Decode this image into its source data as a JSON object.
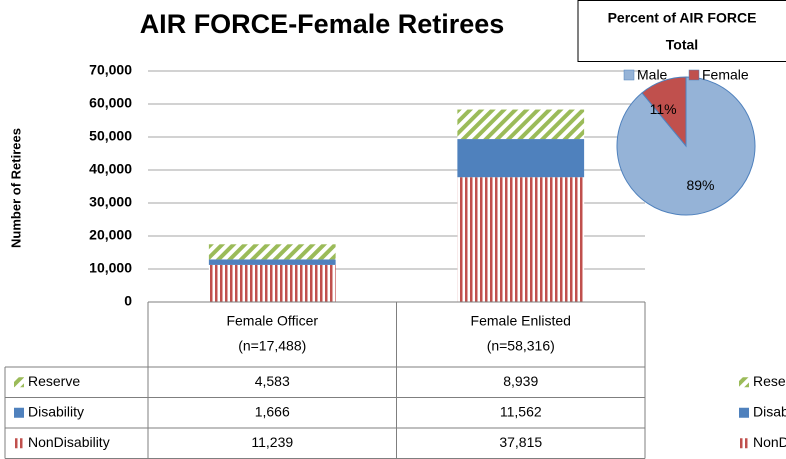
{
  "chart_data": [
    {
      "type": "bar",
      "stacked": true,
      "title": "AIR FORCE-Female Retirees",
      "y_label": "Number of Retirees",
      "categories": [
        [
          "Female Officer",
          "(n=17,488)"
        ],
        [
          "Female Enlisted",
          "(n=58,316)"
        ]
      ],
      "series": [
        {
          "name": "NonDisability",
          "color": "#c0504d",
          "pattern": "vertical-stripes",
          "values": [
            11239,
            37815
          ],
          "value_labels": [
            "11,239",
            "37,815"
          ]
        },
        {
          "name": "Disability",
          "color": "#4f81bd",
          "pattern": "solid",
          "values": [
            1666,
            11562
          ],
          "value_labels": [
            "1,666",
            "11,562"
          ]
        },
        {
          "name": "Reserve",
          "color": "#9bbb59",
          "pattern": "diagonal-stripes",
          "values": [
            4583,
            8939
          ],
          "value_labels": [
            "4,583",
            "8,939"
          ]
        }
      ],
      "table_order": [
        2,
        1,
        0
      ],
      "ylim": [
        0,
        70000
      ],
      "yticks": [
        0,
        {
          "value": 10000,
          "label": "10,000"
        },
        {
          "value": 20000,
          "label": "20,000"
        },
        {
          "value": 30000,
          "label": "30,000"
        },
        {
          "value": 40000,
          "label": "40,000"
        },
        {
          "value": 50000,
          "label": "50,000"
        },
        {
          "value": 60000,
          "label": "60,000"
        },
        {
          "value": 70000,
          "label": "70,000"
        }
      ],
      "grid": true
    },
    {
      "type": "pie",
      "title": [
        "Percent of  AIR FORCE",
        "Total"
      ],
      "categories": [
        "Male",
        "Female"
      ],
      "values": [
        89,
        11
      ],
      "value_labels": [
        "89%",
        "11%"
      ],
      "colors": [
        "#95b3d7",
        "#c0504d"
      ]
    }
  ]
}
